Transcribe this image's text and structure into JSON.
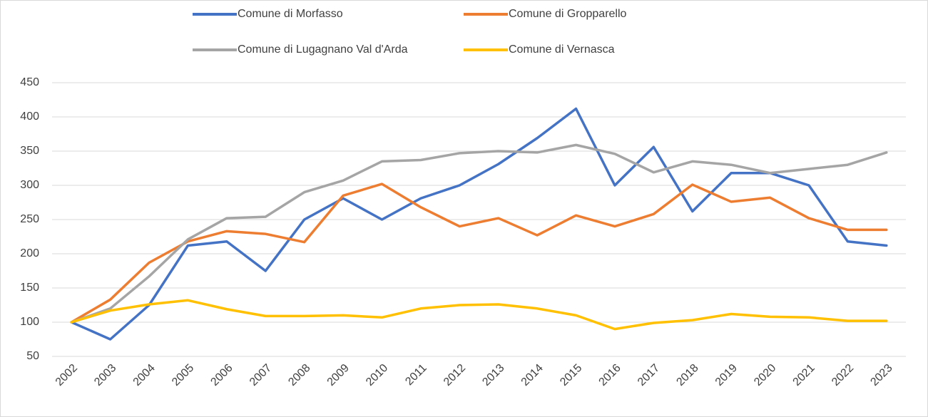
{
  "chart_data": {
    "type": "line",
    "categories": [
      "2002",
      "2003",
      "2004",
      "2005",
      "2006",
      "2007",
      "2008",
      "2009",
      "2010",
      "2011",
      "2012",
      "2013",
      "2014",
      "2015",
      "2016",
      "2017",
      "2018",
      "2019",
      "2020",
      "2021",
      "2022",
      "2023"
    ],
    "series": [
      {
        "name": "Comune di Morfasso",
        "color": "#4472c4",
        "values": [
          100,
          75,
          125,
          212,
          218,
          175,
          250,
          281,
          250,
          281,
          300,
          331,
          369,
          412,
          300,
          356,
          262,
          318,
          318,
          300,
          218,
          212
        ]
      },
      {
        "name": "Comune di Gropparello",
        "color": "#ed7d31",
        "values": [
          100,
          133,
          187,
          218,
          233,
          229,
          217,
          285,
          302,
          268,
          240,
          252,
          227,
          256,
          240,
          258,
          301,
          276,
          282,
          252,
          235,
          235
        ]
      },
      {
        "name": "Comune di Lugagnano Val d'Arda",
        "color": "#a5a5a5",
        "values": [
          100,
          120,
          167,
          221,
          252,
          254,
          290,
          307,
          335,
          337,
          347,
          350,
          348,
          359,
          346,
          319,
          335,
          330,
          318,
          324,
          330,
          348
        ]
      },
      {
        "name": "Comune di Vernasca",
        "color": "#ffc000",
        "values": [
          100,
          117,
          126,
          132,
          119,
          109,
          109,
          110,
          107,
          120,
          125,
          126,
          120,
          110,
          90,
          99,
          103,
          112,
          108,
          107,
          102,
          102
        ]
      }
    ],
    "ylim": [
      50,
      450
    ],
    "yticks": [
      50,
      100,
      150,
      200,
      250,
      300,
      350,
      400,
      450
    ],
    "grid": true,
    "legend": "top"
  }
}
